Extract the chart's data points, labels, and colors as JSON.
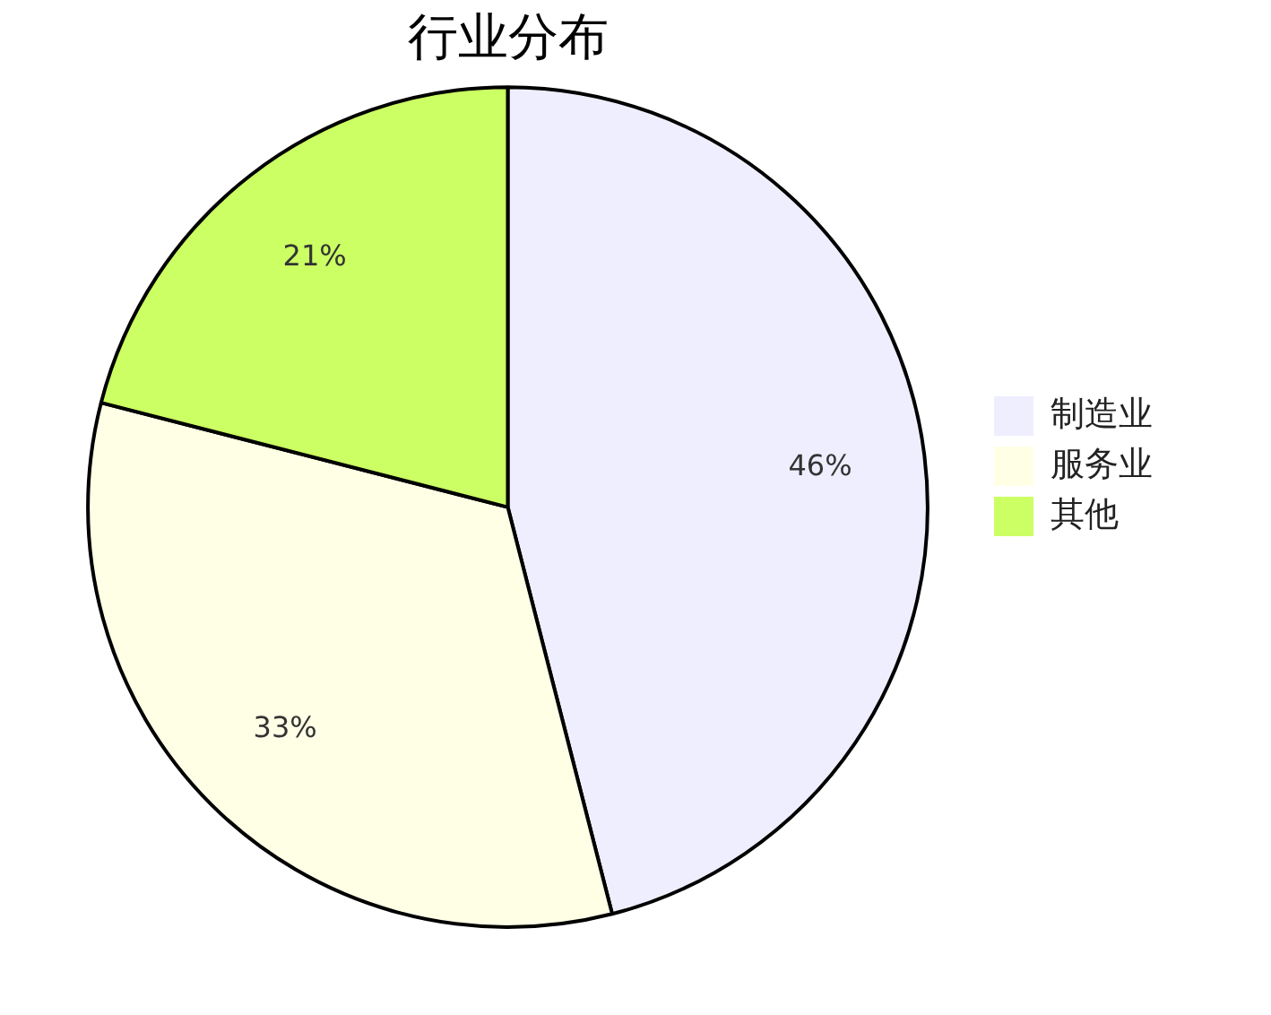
{
  "chart_data": {
    "type": "pie",
    "title": "行业分布",
    "categories": [
      "制造业",
      "服务业",
      "其他"
    ],
    "values": [
      46,
      33,
      21
    ],
    "value_labels": [
      "46%",
      "33%",
      "21%"
    ],
    "colors": [
      "#eeeeff",
      "#ffffe6",
      "#cbff63"
    ],
    "legend": "right"
  }
}
